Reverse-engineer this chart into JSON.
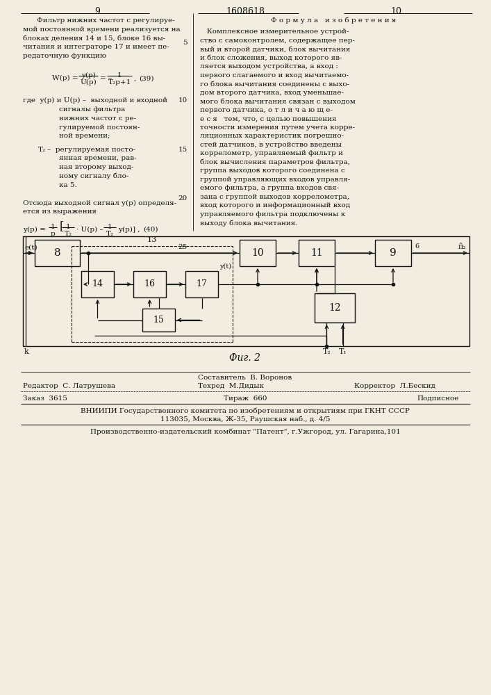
{
  "bg_color": "#f2ede0",
  "text_color": "#111111",
  "line_color": "#111111",
  "page_num_left": "9",
  "page_num_center": "1608618",
  "page_num_right": "10",
  "left_col_lines": [
    "Фильтр нижних частот с регулируе-",
    "мой постоянной времени реализуется на",
    "блоках деления 14 и 15, блоке 16 вы-",
    "читания и интеграторе 17 и имеет пе-",
    "редаточную функцию"
  ],
  "right_col_title": "Ф о р м у л а   и з о б р е т е н и я",
  "right_col_lines": [
    "   Комплексное измерительное устрой-",
    "ство с самоконтролем, содержащее пер-",
    "вый и второй датчики, блок вычитания",
    "и блок сложения, выход которого яв-",
    "ляется выходом устройства, а вход :",
    "первого слагаемого и вход вычитаемо-",
    "го блока вычитания соединены с выхо-",
    "дом второго датчика, вход уменьшае-",
    "мого блока вычитания связан с выходом",
    "первого датчика, о т л и ч а ю щ е-",
    "е с я   тем, что, с целью повышения",
    "точности измерения путем учета корре-",
    "ляционных характеристик погрешно-",
    "стей датчиков, в устройство введены",
    "коррелометр, управляемый фильтр и",
    "блок вычисления параметров фильтра,",
    "группа выходов которого соединена с",
    "группой управляющих входов управля-",
    "емого фильтра, а группа входов свя-",
    "зана с группой выходов коррелометра,",
    "вход которого и информационный вход",
    "управляемого фильтра подключены к",
    "выходу блока вычитания."
  ],
  "fig_caption": "Фиг. 2",
  "footer": {
    "composer": "Составитель  В. Воронов",
    "editor": "Редактор  С. Латрушева",
    "techred": "Техред  М.Дидык",
    "corrector": "Корректор  Л.Бескид",
    "zakaz": "Заказ  3615",
    "tirazh": "Тираж  660",
    "podpisnoe": "Подписное",
    "vniipii": "ВНИИПИ Государственного комитета по изобретениям и открытиям при ГКНТ СССР",
    "address": "113035, Москва, Ж-35, Раушская наб., д. 4/5",
    "kombinat": "Производственно-издательский комбинат \"Патент\", г.Ужгород, ул. Гагарина,101"
  }
}
